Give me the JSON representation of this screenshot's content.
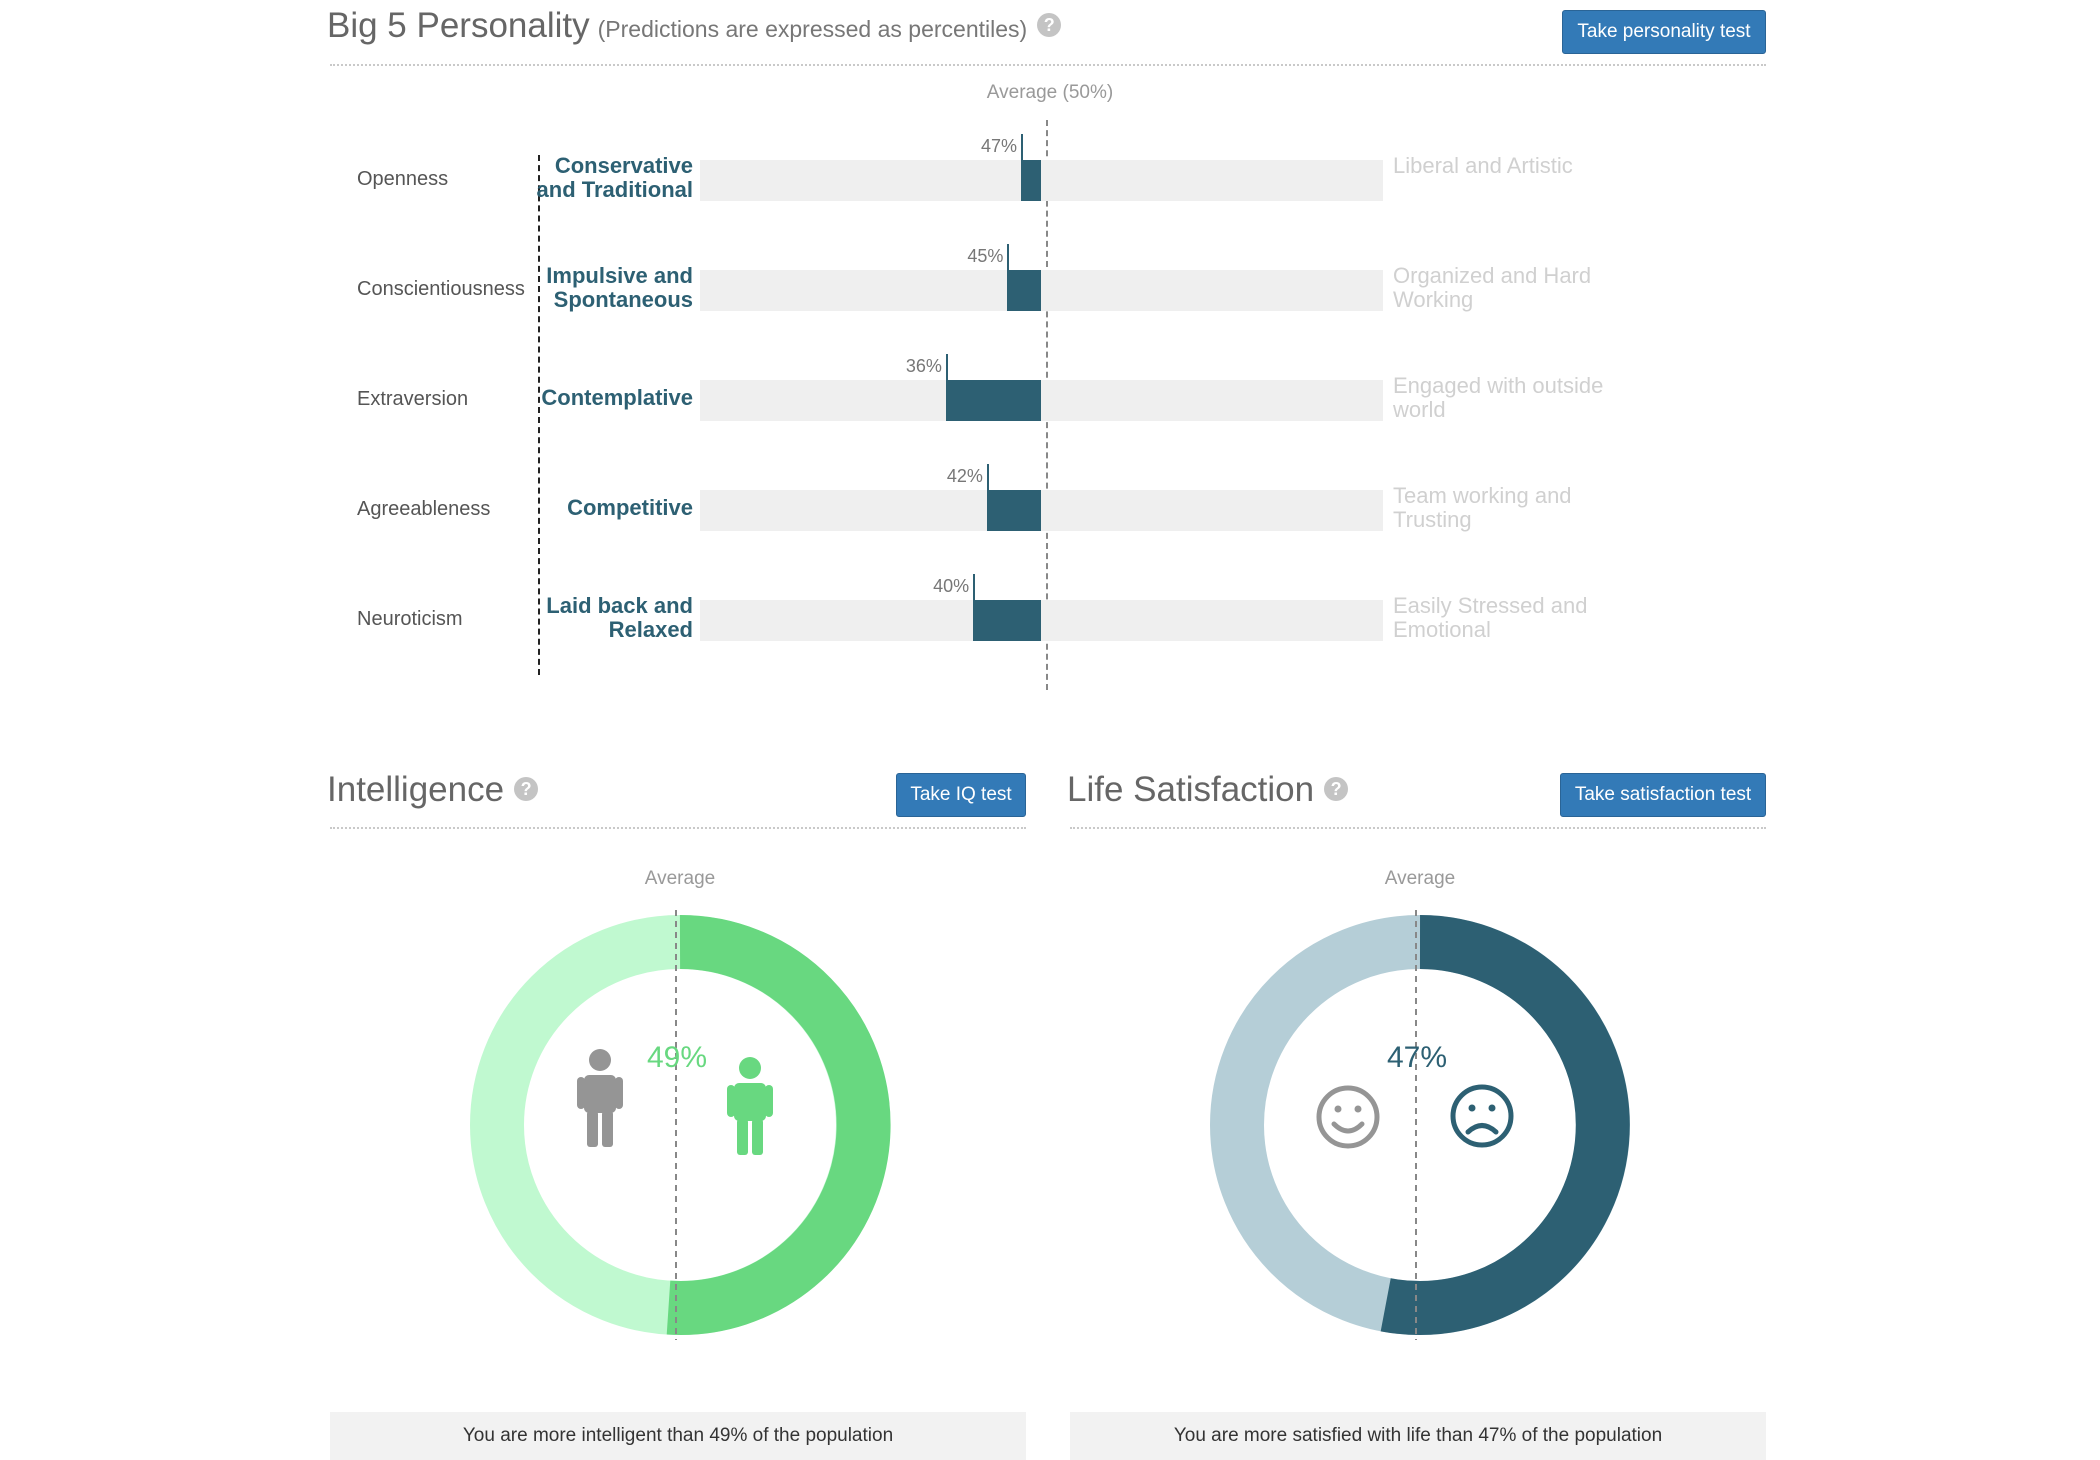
{
  "big5": {
    "title": "Big 5 Personality",
    "subtitle": "(Predictions are expressed as percentiles)",
    "help": "?",
    "button": "Take personality test",
    "average_label": "Average (50%)",
    "traits": [
      {
        "name": "Openness",
        "low": "Conservative and Traditional",
        "high": "Liberal and Artistic",
        "percentile": 47,
        "pct_label": "47%"
      },
      {
        "name": "Conscientiousness",
        "low": "Impulsive and Spontaneous",
        "high": "Organized and Hard Working",
        "percentile": 45,
        "pct_label": "45%"
      },
      {
        "name": "Extraversion",
        "low": "Contemplative",
        "high": "Engaged with outside world",
        "percentile": 36,
        "pct_label": "36%"
      },
      {
        "name": "Agreeableness",
        "low": "Competitive",
        "high": "Team working and Trusting",
        "percentile": 42,
        "pct_label": "42%"
      },
      {
        "name": "Neuroticism",
        "low": "Laid back and Relaxed",
        "high": "Easily Stressed and Emotional",
        "percentile": 40,
        "pct_label": "40%"
      }
    ],
    "colors": {
      "fill": "#2d6073",
      "track": "#efefef"
    }
  },
  "intelligence": {
    "title": "Intelligence",
    "help": "?",
    "button": "Take IQ test",
    "average_label": "Average",
    "value": 49,
    "value_label": "49%",
    "summary": "You are more intelligent than 49% of the population",
    "left_icon": "person-icon",
    "right_icon": "person-icon",
    "colors": {
      "light": "#c0f9d0",
      "dark": "#68d880",
      "left_icon": "#959595",
      "right_icon": "#68d880"
    }
  },
  "life": {
    "title": "Life Satisfaction",
    "help": "?",
    "button": "Take satisfaction test",
    "average_label": "Average",
    "value": 47,
    "value_label": "47%",
    "summary": "You are more satisfied with life than 47% of the population",
    "left_icon": "smile-icon",
    "right_icon": "frown-icon",
    "colors": {
      "light": "#b5ced7",
      "dark": "#2d6073",
      "left_icon": "#959595",
      "right_icon": "#2d6073"
    }
  }
}
